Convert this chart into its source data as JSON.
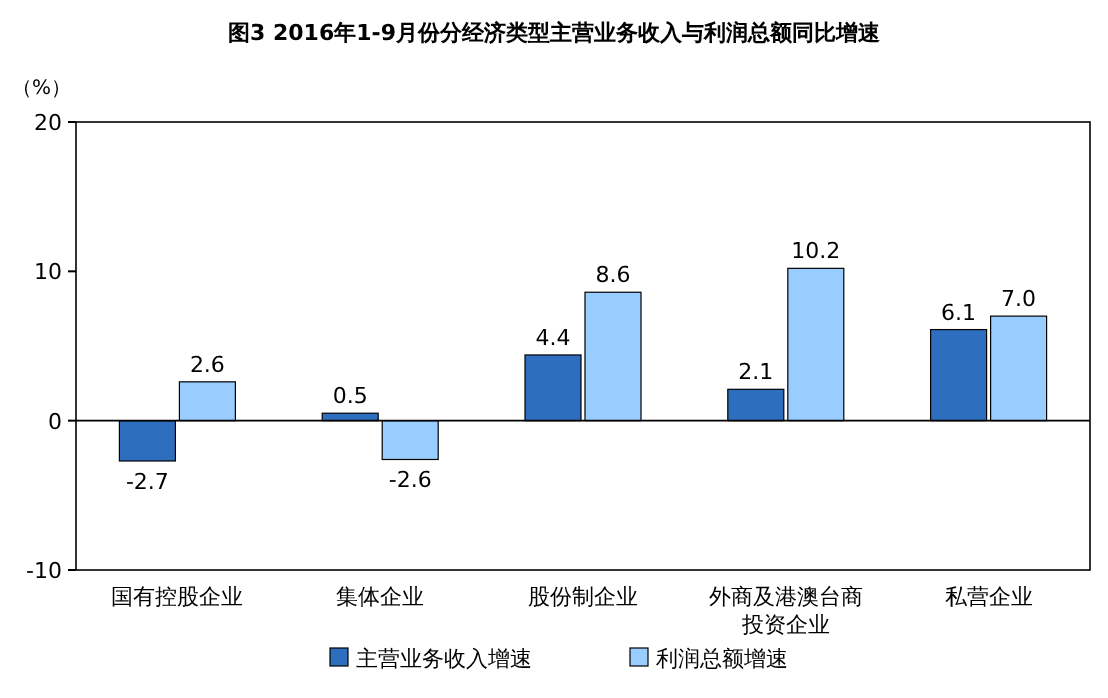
{
  "chart_data": {
    "type": "bar",
    "title": "图3 2016年1-9月份分经济类型主营业务收入与利润总额同比增速",
    "ylabel": "（%）",
    "categories": [
      "国有控股企业",
      "集体企业",
      "股份制企业",
      "外商及港澳台商投资企业",
      "私营企业"
    ],
    "series": [
      {
        "name": "主营业务收入增速",
        "color": "#2e6ebf",
        "values": [
          -2.7,
          0.5,
          4.4,
          2.1,
          6.1
        ],
        "value_labels": [
          "-2.7",
          "0.5",
          "4.4",
          "2.1",
          "6.1"
        ]
      },
      {
        "name": "利润总额增速",
        "color": "#99ccff",
        "values": [
          2.6,
          -2.6,
          8.6,
          10.2,
          7.0
        ],
        "value_labels": [
          "2.6",
          "-2.6",
          "8.6",
          "10.2",
          "7.0"
        ]
      }
    ],
    "ylim": [
      -10,
      20
    ],
    "yticks": [
      -10,
      0,
      10,
      20
    ],
    "ref_lines": [
      {
        "axis": "y",
        "value": 0,
        "color": "#000000"
      }
    ],
    "legend": "bottom"
  }
}
